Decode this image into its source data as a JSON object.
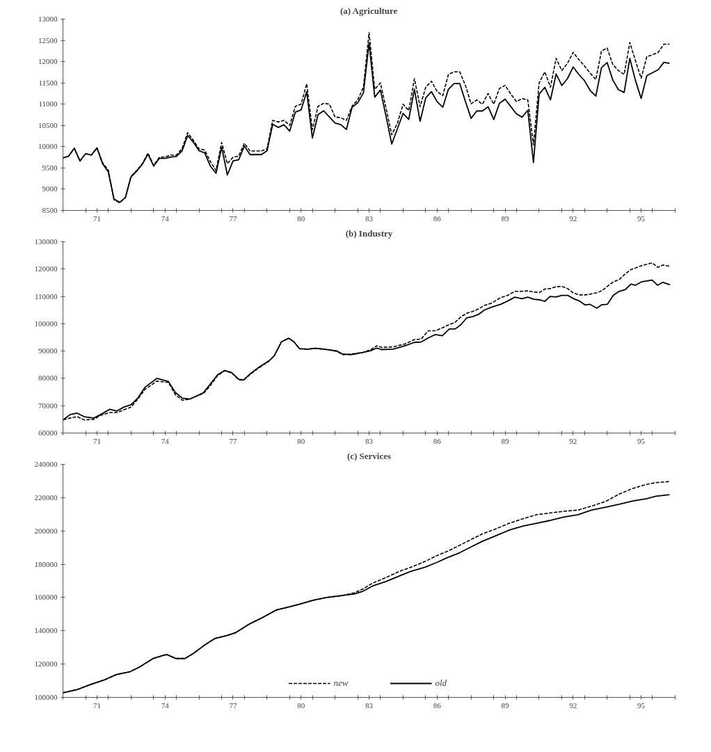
{
  "chart_data": [
    {
      "type": "line",
      "title": "(a) Agriculture",
      "xlim": [
        70,
        97
      ],
      "ylim": [
        8500,
        13000
      ],
      "yticks": [
        8500,
        9000,
        9500,
        10000,
        10500,
        11000,
        11500,
        12000,
        12500,
        13000
      ],
      "xticks": [
        {
          "value": 70,
          "label": null
        },
        {
          "value": 71,
          "label": null
        },
        {
          "value": 71.5,
          "label": "71"
        },
        {
          "value": 72,
          "label": null
        },
        {
          "value": 73,
          "label": null
        },
        {
          "value": 74,
          "label": null
        },
        {
          "value": 74.5,
          "label": "74"
        },
        {
          "value": 75,
          "label": null
        },
        {
          "value": 76,
          "label": null
        },
        {
          "value": 77,
          "label": null
        },
        {
          "value": 77.5,
          "label": "77"
        },
        {
          "value": 78,
          "label": null
        },
        {
          "value": 79,
          "label": null
        },
        {
          "value": 80,
          "label": null
        },
        {
          "value": 80.5,
          "label": "80"
        },
        {
          "value": 81,
          "label": null
        },
        {
          "value": 82,
          "label": null
        },
        {
          "value": 83,
          "label": null
        },
        {
          "value": 83.5,
          "label": "83"
        },
        {
          "value": 84,
          "label": null
        },
        {
          "value": 85,
          "label": null
        },
        {
          "value": 86,
          "label": null
        },
        {
          "value": 86.5,
          "label": "86"
        },
        {
          "value": 87,
          "label": null
        },
        {
          "value": 88,
          "label": null
        },
        {
          "value": 89,
          "label": null
        },
        {
          "value": 89.5,
          "label": "89"
        },
        {
          "value": 90,
          "label": null
        },
        {
          "value": 91,
          "label": null
        },
        {
          "value": 92,
          "label": null
        },
        {
          "value": 92.5,
          "label": "92"
        },
        {
          "value": 93,
          "label": null
        },
        {
          "value": 94,
          "label": null
        },
        {
          "value": 95,
          "label": null
        },
        {
          "value": 95.5,
          "label": "95"
        },
        {
          "value": 96,
          "label": null
        },
        {
          "value": 97,
          "label": null
        }
      ],
      "x": [
        70,
        70.25,
        70.5,
        70.75,
        71,
        71.25,
        71.5,
        71.75,
        72,
        72.25,
        72.5,
        72.75,
        73,
        73.25,
        73.5,
        73.75,
        74,
        74.25,
        74.5,
        74.75,
        75,
        75.25,
        75.5,
        75.75,
        76,
        76.25,
        76.5,
        76.75,
        77,
        77.25,
        77.5,
        77.75,
        78,
        78.25,
        78.5,
        78.75,
        79,
        79.25,
        79.5,
        79.75,
        80,
        80.25,
        80.5,
        80.75,
        81,
        81.25,
        81.5,
        81.75,
        82,
        82.25,
        82.5,
        82.75,
        83,
        83.25,
        83.5,
        83.75,
        84,
        84.25,
        84.5,
        84.75,
        85,
        85.25,
        85.5,
        85.75,
        86,
        86.25,
        86.5,
        86.75,
        87,
        87.25,
        87.5,
        87.75,
        88,
        88.25,
        88.5,
        88.75,
        89,
        89.25,
        89.5,
        89.75,
        90,
        90.25,
        90.5,
        90.75,
        91,
        91.25,
        91.5,
        91.75,
        92,
        92.25,
        92.5,
        92.75,
        93,
        93.25,
        93.5,
        93.75,
        94,
        94.25,
        94.5,
        94.75,
        95,
        95.25,
        95.5,
        95.75,
        96,
        96.25,
        96.5,
        96.75
      ],
      "series": [
        {
          "color": "#000000",
          "line_style": "dashed",
          "values": [
            9735,
            9777,
            9963,
            9663,
            9837,
            9801,
            9970,
            9620,
            9450,
            8750,
            8680,
            8800,
            9300,
            9440,
            9600,
            9850,
            9560,
            9750,
            9760,
            9800,
            9800,
            9950,
            10330,
            10150,
            9950,
            9920,
            9650,
            9440,
            10100,
            9600,
            9750,
            9780,
            10080,
            9900,
            9900,
            9900,
            9950,
            10620,
            10580,
            10620,
            10500,
            10950,
            11000,
            11480,
            10400,
            10950,
            11020,
            11000,
            10700,
            10680,
            10620,
            10950,
            11100,
            11400,
            12680,
            11350,
            11500,
            10900,
            10280,
            10550,
            11000,
            10850,
            11600,
            10940,
            11400,
            11540,
            11300,
            11200,
            11700,
            11760,
            11760,
            11440,
            11010,
            11100,
            11000,
            11250,
            11000,
            11370,
            11440,
            11240,
            11060,
            11130,
            11100,
            10040,
            11500,
            11760,
            11400,
            12080,
            11790,
            11960,
            12220,
            12050,
            11900,
            11730,
            11580,
            12250,
            12320,
            11930,
            11790,
            11700,
            12450,
            12020,
            11610,
            12120,
            12160,
            12220,
            12410,
            12410
          ]
        },
        {
          "color": "#000000",
          "line_style": "solid",
          "values": [
            9735,
            9777,
            9963,
            9663,
            9837,
            9801,
            9970,
            9598,
            9406,
            8770,
            8690,
            8800,
            9286,
            9424,
            9585,
            9825,
            9544,
            9724,
            9724,
            9753,
            9771,
            9897,
            10263,
            10107,
            9903,
            9855,
            9544,
            9376,
            9987,
            9334,
            9663,
            9694,
            10017,
            9813,
            9813,
            9813,
            9903,
            10526,
            10454,
            10514,
            10364,
            10814,
            10862,
            11293,
            10203,
            10754,
            10844,
            10700,
            10555,
            10520,
            10404,
            10927,
            11031,
            11264,
            12437,
            11165,
            11333,
            10712,
            10062,
            10422,
            10782,
            10642,
            11351,
            10596,
            11148,
            11293,
            11060,
            10927,
            11351,
            11484,
            11484,
            11060,
            10666,
            10840,
            10840,
            10939,
            10637,
            11020,
            11119,
            10944,
            10770,
            10695,
            10857,
            9626,
            11235,
            11397,
            11101,
            11711,
            11438,
            11601,
            11874,
            11699,
            11554,
            11322,
            11188,
            11856,
            11978,
            11566,
            11339,
            11275,
            12077,
            11554,
            11136,
            11670,
            11740,
            11810,
            11984,
            11961
          ]
        }
      ]
    },
    {
      "type": "line",
      "title": "(b) Industry",
      "xlim": [
        70,
        97
      ],
      "ylim": [
        60000,
        130000
      ],
      "yticks": [
        60000,
        70000,
        80000,
        90000,
        100000,
        110000,
        120000,
        130000
      ],
      "xticks": [
        {
          "value": 70,
          "label": null
        },
        {
          "value": 71,
          "label": null
        },
        {
          "value": 71.5,
          "label": "71"
        },
        {
          "value": 72,
          "label": null
        },
        {
          "value": 73,
          "label": null
        },
        {
          "value": 74,
          "label": null
        },
        {
          "value": 74.5,
          "label": "74"
        },
        {
          "value": 75,
          "label": null
        },
        {
          "value": 76,
          "label": null
        },
        {
          "value": 77,
          "label": null
        },
        {
          "value": 77.5,
          "label": "77"
        },
        {
          "value": 78,
          "label": null
        },
        {
          "value": 79,
          "label": null
        },
        {
          "value": 80,
          "label": null
        },
        {
          "value": 80.5,
          "label": "80"
        },
        {
          "value": 81,
          "label": null
        },
        {
          "value": 82,
          "label": null
        },
        {
          "value": 83,
          "label": null
        },
        {
          "value": 83.5,
          "label": "83"
        },
        {
          "value": 84,
          "label": null
        },
        {
          "value": 85,
          "label": null
        },
        {
          "value": 86,
          "label": null
        },
        {
          "value": 86.5,
          "label": "86"
        },
        {
          "value": 87,
          "label": null
        },
        {
          "value": 88,
          "label": null
        },
        {
          "value": 89,
          "label": null
        },
        {
          "value": 89.5,
          "label": "89"
        },
        {
          "value": 90,
          "label": null
        },
        {
          "value": 91,
          "label": null
        },
        {
          "value": 92,
          "label": null
        },
        {
          "value": 92.5,
          "label": "92"
        },
        {
          "value": 93,
          "label": null
        },
        {
          "value": 94,
          "label": null
        },
        {
          "value": 95,
          "label": null
        },
        {
          "value": 95.5,
          "label": "95"
        },
        {
          "value": 96,
          "label": null
        },
        {
          "value": 97,
          "label": null
        }
      ],
      "x": [
        70.01,
        70.32,
        70.63,
        70.94,
        71.35,
        71.66,
        72.07,
        72.38,
        72.69,
        73.0,
        73.31,
        73.62,
        74.14,
        74.65,
        74.96,
        75.27,
        75.58,
        75.89,
        76.2,
        76.51,
        76.82,
        77.13,
        77.44,
        77.75,
        77.96,
        78.27,
        78.58,
        79.09,
        79.32,
        79.64,
        79.96,
        80.18,
        80.44,
        80.82,
        81.14,
        81.67,
        82.08,
        82.34,
        82.7,
        83.22,
        83.58,
        83.84,
        84.04,
        84.56,
        85.08,
        85.49,
        85.8,
        86.11,
        86.42,
        86.73,
        87.04,
        87.3,
        87.56,
        87.81,
        88.07,
        88.33,
        88.59,
        88.9,
        89.31,
        89.62,
        89.93,
        90.24,
        90.5,
        90.76,
        91.02,
        91.25,
        91.48,
        91.74,
        92.0,
        92.26,
        92.52,
        92.77,
        93.03,
        93.24,
        93.55,
        93.76,
        94.01,
        94.27,
        94.53,
        94.79,
        95.05,
        95.25,
        95.51,
        95.98,
        96.23,
        96.46,
        96.77
      ],
      "series": [
        {
          "color": "#000000",
          "line_style": "dashed",
          "values": [
            64840,
            65500,
            66000,
            64800,
            65000,
            66500,
            67500,
            67500,
            68500,
            69500,
            72500,
            76000,
            79000,
            78500,
            74000,
            72000,
            72400,
            73500,
            74500,
            77500,
            81000,
            82800,
            82000,
            79500,
            79300,
            81500,
            83500,
            86300,
            88290,
            93420,
            94700,
            93420,
            90850,
            90680,
            91030,
            90540,
            89880,
            88650,
            88900,
            89470,
            90540,
            91930,
            91360,
            91520,
            92590,
            94150,
            94390,
            97430,
            97430,
            98490,
            99720,
            100540,
            102590,
            103820,
            104480,
            105460,
            106700,
            107520,
            109570,
            110390,
            111860,
            111860,
            112030,
            111620,
            111450,
            112690,
            112850,
            113510,
            113670,
            112850,
            111210,
            110550,
            110550,
            110800,
            111370,
            112030,
            113670,
            115310,
            116130,
            118180,
            119820,
            120400,
            121220,
            122280,
            120640,
            121460,
            121050
          ]
        },
        {
          "color": "#000000",
          "line_style": "solid",
          "values": [
            64840,
            66770,
            67260,
            65970,
            65480,
            66770,
            68710,
            68070,
            69520,
            70320,
            72900,
            76770,
            80000,
            78870,
            74840,
            72740,
            72420,
            73550,
            74840,
            78060,
            81290,
            82900,
            82100,
            79680,
            79360,
            81780,
            83710,
            86450,
            88290,
            93420,
            94700,
            93420,
            90850,
            90680,
            91030,
            90540,
            90040,
            88900,
            88650,
            89470,
            90130,
            91110,
            90540,
            90700,
            91930,
            93160,
            93330,
            94800,
            96030,
            95620,
            98080,
            98080,
            99720,
            102180,
            102600,
            103420,
            105060,
            106040,
            107110,
            108340,
            109730,
            109160,
            109730,
            108990,
            108750,
            108170,
            109980,
            109820,
            110390,
            110390,
            109160,
            108340,
            106860,
            107110,
            105710,
            106940,
            107110,
            110390,
            111860,
            112440,
            114490,
            114080,
            115310,
            115970,
            114080,
            115150,
            114240
          ]
        }
      ]
    },
    {
      "type": "line",
      "title": "(c) Services",
      "xlim": [
        70,
        97
      ],
      "ylim": [
        100000,
        240000
      ],
      "legend": "bottom",
      "yticks": [
        100000,
        120000,
        140000,
        160000,
        180000,
        200000,
        220000,
        240000
      ],
      "xticks": [
        {
          "value": 70,
          "label": null
        },
        {
          "value": 71,
          "label": null
        },
        {
          "value": 71.5,
          "label": "71"
        },
        {
          "value": 72,
          "label": null
        },
        {
          "value": 73,
          "label": null
        },
        {
          "value": 74,
          "label": null
        },
        {
          "value": 74.5,
          "label": "74"
        },
        {
          "value": 75,
          "label": null
        },
        {
          "value": 76,
          "label": null
        },
        {
          "value": 77,
          "label": null
        },
        {
          "value": 77.5,
          "label": "77"
        },
        {
          "value": 78,
          "label": null
        },
        {
          "value": 79,
          "label": null
        },
        {
          "value": 80,
          "label": null
        },
        {
          "value": 80.5,
          "label": "80"
        },
        {
          "value": 81,
          "label": null
        },
        {
          "value": 82,
          "label": null
        },
        {
          "value": 83,
          "label": null
        },
        {
          "value": 83.5,
          "label": "83"
        },
        {
          "value": 84,
          "label": null
        },
        {
          "value": 85,
          "label": null
        },
        {
          "value": 86,
          "label": null
        },
        {
          "value": 86.5,
          "label": "86"
        },
        {
          "value": 87,
          "label": null
        },
        {
          "value": 88,
          "label": null
        },
        {
          "value": 89,
          "label": null
        },
        {
          "value": 89.5,
          "label": "89"
        },
        {
          "value": 90,
          "label": null
        },
        {
          "value": 91,
          "label": null
        },
        {
          "value": 92,
          "label": null
        },
        {
          "value": 92.5,
          "label": "92"
        },
        {
          "value": 93,
          "label": null
        },
        {
          "value": 94,
          "label": null
        },
        {
          "value": 95,
          "label": null
        },
        {
          "value": 95.5,
          "label": "95"
        },
        {
          "value": 96,
          "label": null
        },
        {
          "value": 97,
          "label": null
        }
      ],
      "x": [
        70.0,
        70.65,
        71.25,
        71.85,
        72.36,
        72.96,
        73.37,
        73.97,
        74.37,
        74.58,
        74.98,
        75.38,
        75.79,
        76.19,
        76.69,
        77.2,
        77.6,
        78.2,
        78.81,
        79.41,
        79.92,
        80.42,
        81.03,
        81.63,
        82.24,
        82.84,
        83.24,
        83.65,
        84.25,
        84.86,
        85.36,
        85.97,
        86.47,
        86.97,
        87.48,
        87.98,
        88.48,
        89.09,
        89.69,
        90.3,
        90.9,
        91.51,
        92.11,
        92.72,
        93.32,
        93.93,
        94.53,
        95.14,
        95.74,
        96.14,
        96.75
      ],
      "series": [
        {
          "name": "new",
          "color": "#000000",
          "line_style": "dashed",
          "values": [
            102740,
            104800,
            107890,
            110640,
            113720,
            115440,
            118180,
            123330,
            125050,
            125730,
            123330,
            123330,
            126760,
            130880,
            135340,
            137060,
            138770,
            143920,
            148030,
            152490,
            154210,
            155930,
            158330,
            160040,
            161070,
            162790,
            165190,
            168620,
            172050,
            175830,
            178230,
            181660,
            185090,
            187830,
            191260,
            194700,
            198130,
            201210,
            204650,
            207390,
            209790,
            210820,
            211850,
            212540,
            214940,
            217680,
            222140,
            225570,
            227970,
            229000,
            229690
          ]
        },
        {
          "name": "old",
          "color": "#000000",
          "line_style": "solid",
          "values": [
            102740,
            104800,
            107890,
            110640,
            113720,
            115440,
            118180,
            123330,
            125050,
            125730,
            123330,
            123330,
            126760,
            130880,
            135340,
            137060,
            138770,
            143920,
            148030,
            152490,
            154210,
            155930,
            158330,
            160040,
            161070,
            162100,
            163820,
            166900,
            169650,
            173080,
            175830,
            178230,
            180970,
            184060,
            186800,
            190240,
            193670,
            197100,
            200530,
            202930,
            204650,
            206360,
            208420,
            209790,
            212540,
            214250,
            216000,
            218000,
            219400,
            220800,
            221800
          ]
        }
      ]
    }
  ]
}
